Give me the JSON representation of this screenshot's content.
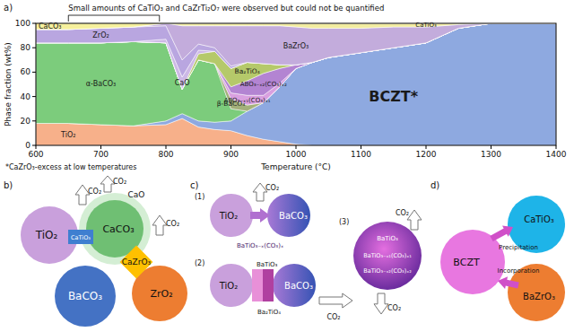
{
  "chart_data": {
    "type": "area",
    "stacked": true,
    "panel_label": "a)",
    "x_label": "Temperature (°C)",
    "y_label": "Phase fraction (wt%)",
    "annotations": [
      "Small amounts of CaTiO₃ and CaZrTi₂O₇ were observed but could not be quantified",
      "*CaZrO₃-excess at low temperatures"
    ],
    "bracket_x": [
      650,
      790
    ],
    "x": [
      600,
      650,
      700,
      750,
      800,
      825,
      850,
      875,
      900,
      925,
      950,
      975,
      1000,
      1025,
      1050,
      1100,
      1150,
      1200,
      1250,
      1300,
      1400
    ],
    "xlim": [
      600,
      1400
    ],
    "xticks": [
      600,
      700,
      800,
      900,
      1000,
      1100,
      1200,
      1300,
      1400
    ],
    "ylim": [
      0,
      100
    ],
    "yticks": [
      0,
      20,
      40,
      60,
      80,
      100
    ],
    "grid": false,
    "series": [
      {
        "name": "TiO₂",
        "color": "#f7b08a",
        "values": [
          18,
          18,
          17,
          16,
          17,
          22,
          15,
          13,
          12,
          8,
          5,
          3,
          1,
          0,
          0,
          0,
          0,
          0,
          0,
          0,
          0
        ]
      },
      {
        "name": "BCZT*",
        "color": "#8ea9e0",
        "values": [
          0,
          0,
          0,
          0,
          3,
          4,
          5,
          6,
          8,
          20,
          30,
          45,
          62,
          68,
          72,
          76,
          80,
          84,
          96,
          100,
          100
        ]
      },
      {
        "name": "α-BaCO₃",
        "color": "#7ccc7c",
        "values": [
          66,
          66,
          67,
          69,
          64,
          20,
          50,
          48,
          10,
          0,
          0,
          0,
          0,
          0,
          0,
          0,
          0,
          0,
          0,
          0,
          0
        ]
      },
      {
        "name": "β-BaCO₃",
        "color": "#a3b07a",
        "values": [
          0,
          0,
          0,
          0,
          0,
          0,
          0,
          0,
          8,
          5,
          0,
          0,
          0,
          0,
          0,
          0,
          0,
          0,
          0,
          0,
          0
        ]
      },
      {
        "name": "ABO₃₋ₓ₁(CO₃)ₓ₁",
        "color": "#d9a0e0",
        "values": [
          0,
          0,
          0,
          0,
          0,
          0,
          0,
          0,
          5,
          8,
          6,
          3,
          0,
          0,
          0,
          0,
          0,
          0,
          0,
          0,
          0
        ]
      },
      {
        "name": "ABO₃₋ₓ₂(CO₃)ₓ₂",
        "color": "#b384d2",
        "values": [
          0,
          0,
          0,
          0,
          0,
          0,
          0,
          0,
          5,
          12,
          18,
          12,
          3,
          0,
          0,
          0,
          0,
          0,
          0,
          0,
          0
        ]
      },
      {
        "name": "Ba₂TiO₄",
        "color": "#b5c96a",
        "values": [
          0,
          0,
          0,
          0,
          0,
          0,
          5,
          10,
          15,
          15,
          8,
          3,
          0,
          0,
          0,
          0,
          0,
          0,
          0,
          0,
          0
        ]
      },
      {
        "name": "CaO",
        "color": "#cdb8e6",
        "values": [
          0,
          0,
          0,
          0,
          3,
          10,
          3,
          0,
          0,
          0,
          0,
          0,
          0,
          0,
          0,
          0,
          0,
          0,
          0,
          0,
          0
        ]
      },
      {
        "name": "ZrO₂",
        "color": "#b9a6e0",
        "values": [
          11,
          11,
          12,
          12,
          11,
          14,
          5,
          3,
          2,
          0,
          0,
          0,
          0,
          0,
          0,
          0,
          0,
          0,
          0,
          0,
          0
        ]
      },
      {
        "name": "BaZrO₃",
        "color": "#c3acdc",
        "values": [
          0,
          0,
          0,
          0,
          2,
          28,
          15,
          18,
          33,
          30,
          31,
          32,
          31,
          28,
          24,
          20,
          17,
          13,
          3,
          0,
          0
        ]
      },
      {
        "name": "CaTiO₃",
        "color": "#f2eca0",
        "values": [
          0,
          0,
          0,
          0,
          0,
          2,
          2,
          2,
          2,
          2,
          2,
          2,
          3,
          4,
          4,
          4,
          3,
          3,
          1,
          0,
          0
        ]
      },
      {
        "name": "CaCO₃",
        "color": "#f6f09c",
        "values": [
          5,
          5,
          4,
          3,
          0,
          0,
          0,
          0,
          0,
          0,
          0,
          0,
          0,
          0,
          0,
          0,
          0,
          0,
          0,
          0,
          0
        ]
      }
    ]
  },
  "diagrams": {
    "b": {
      "panel_label": "b)",
      "labels": [
        "TiO₂",
        "CaTiO₃",
        "CaCO₃",
        "CaO",
        "CaZrO₃",
        "BaCO₃",
        "ZrO₂"
      ],
      "gas": "CO₂"
    },
    "c": {
      "panel_label": "c)",
      "steps": [
        "(1)",
        "(2)",
        "(3)"
      ],
      "labels": [
        "TiO₂",
        "BaCO₃",
        "BaTiO₃₋ₓ(CO₃)ₓ",
        "TiO₂",
        "BaTiO₃",
        "Ba₂TiO₄",
        "BaCO₃",
        "BaTiO₃",
        "BaTiO₃₋ₓ₁(CO₃)ₓ₁",
        "BaTiO₃₋ₓ₂(CO₃)ₓ₂"
      ],
      "gas": "CO₂"
    },
    "d": {
      "panel_label": "d)",
      "labels": [
        "BCZT",
        "CaTiO₃",
        "BaZrO₃",
        "Precipitation",
        "Incorporation"
      ]
    }
  }
}
